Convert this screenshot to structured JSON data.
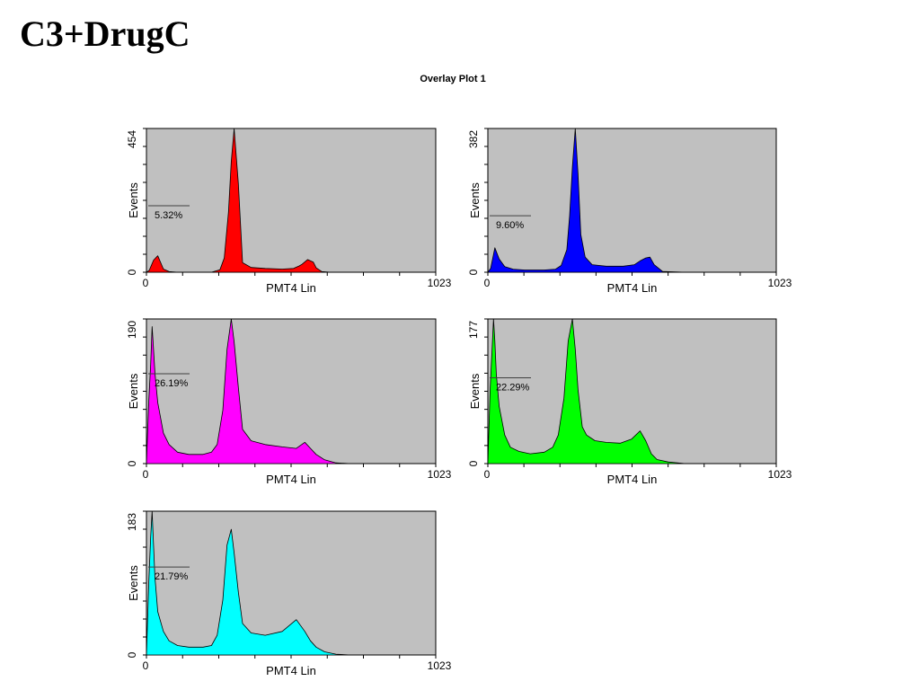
{
  "page": {
    "title": "C3+DrugC",
    "subtitle": "Overlay Plot 1"
  },
  "chart_data": [
    {
      "type": "area",
      "xlabel": "PMT4 Lin",
      "ylabel": "Events",
      "xlim": [
        0,
        1023
      ],
      "ylim": [
        0,
        454
      ],
      "x_ticks": [
        "0",
        "1023"
      ],
      "y_ticks": [
        "0",
        "454"
      ],
      "color": "#ff0000",
      "gate_label": "5.32%",
      "gate_y": 210,
      "series": [
        {
          "x": [
            0,
            10,
            25,
            40,
            60,
            80,
            110,
            150,
            230,
            260,
            275,
            290,
            300,
            310,
            325,
            340,
            370,
            420,
            480,
            520,
            540,
            550,
            570,
            590,
            600,
            620,
            650,
            700,
            750,
            800,
            850,
            900,
            950,
            1023
          ],
          "values": [
            0,
            6,
            38,
            52,
            10,
            2,
            0,
            0,
            0,
            8,
            45,
            190,
            350,
            454,
            280,
            30,
            15,
            12,
            10,
            12,
            20,
            25,
            40,
            32,
            14,
            2,
            0,
            0,
            0,
            0,
            0,
            0,
            0,
            0
          ]
        }
      ]
    },
    {
      "type": "area",
      "xlabel": "PMT4 Lin",
      "ylabel": "Events",
      "xlim": [
        0,
        1023
      ],
      "ylim": [
        0,
        382
      ],
      "x_ticks": [
        "0",
        "1023"
      ],
      "y_ticks": [
        "0",
        "382"
      ],
      "color": "#0000ff",
      "gate_label": "9.60%",
      "gate_y": 150,
      "series": [
        {
          "x": [
            0,
            10,
            25,
            40,
            60,
            90,
            130,
            200,
            240,
            260,
            280,
            290,
            300,
            310,
            320,
            330,
            345,
            370,
            420,
            480,
            520,
            540,
            560,
            575,
            590,
            620,
            700,
            800,
            900,
            1023
          ],
          "values": [
            0,
            10,
            65,
            35,
            15,
            8,
            6,
            6,
            8,
            18,
            60,
            150,
            280,
            382,
            260,
            100,
            40,
            20,
            16,
            16,
            20,
            30,
            38,
            40,
            20,
            2,
            0,
            0,
            0,
            0
          ]
        }
      ]
    },
    {
      "type": "area",
      "xlabel": "PMT4 Lin",
      "ylabel": "Events",
      "xlim": [
        0,
        1023
      ],
      "ylim": [
        0,
        190
      ],
      "x_ticks": [
        "0",
        "1023"
      ],
      "y_ticks": [
        "0",
        "190"
      ],
      "color": "#ff00ff",
      "gate_label": "26.19%",
      "gate_y": 118,
      "series": [
        {
          "x": [
            0,
            8,
            15,
            20,
            25,
            30,
            40,
            60,
            80,
            110,
            150,
            200,
            230,
            250,
            270,
            285,
            300,
            310,
            325,
            340,
            370,
            420,
            480,
            530,
            560,
            580,
            600,
            630,
            670,
            720,
            800,
            900,
            1023
          ],
          "values": [
            0,
            80,
            130,
            180,
            150,
            120,
            80,
            40,
            25,
            15,
            12,
            12,
            15,
            25,
            70,
            150,
            190,
            160,
            100,
            45,
            30,
            25,
            22,
            20,
            28,
            20,
            12,
            5,
            1,
            0,
            0,
            0,
            0
          ]
        }
      ]
    },
    {
      "type": "area",
      "xlabel": "PMT4 Lin",
      "ylabel": "Events",
      "xlim": [
        0,
        1023
      ],
      "ylim": [
        0,
        177
      ],
      "x_ticks": [
        "0",
        "1023"
      ],
      "y_ticks": [
        "0",
        "177"
      ],
      "color": "#00ff00",
      "gate_label": "22.29%",
      "gate_y": 105,
      "series": [
        {
          "x": [
            0,
            8,
            15,
            20,
            25,
            30,
            40,
            60,
            80,
            110,
            150,
            200,
            230,
            250,
            270,
            285,
            300,
            310,
            320,
            335,
            350,
            380,
            420,
            470,
            510,
            540,
            560,
            580,
            600,
            640,
            700,
            800,
            900,
            1023
          ],
          "values": [
            0,
            90,
            140,
            177,
            150,
            110,
            70,
            35,
            20,
            15,
            12,
            14,
            20,
            35,
            80,
            150,
            177,
            140,
            90,
            45,
            35,
            28,
            26,
            25,
            30,
            40,
            28,
            12,
            5,
            2,
            0,
            0,
            0,
            0
          ]
        }
      ]
    },
    {
      "type": "area",
      "xlabel": "PMT4 Lin",
      "ylabel": "Events",
      "xlim": [
        0,
        1023
      ],
      "ylim": [
        0,
        183
      ],
      "x_ticks": [
        "0",
        "1023"
      ],
      "y_ticks": [
        "0",
        "183"
      ],
      "color": "#00ffff",
      "gate_label": "21.79%",
      "gate_y": 112,
      "series": [
        {
          "x": [
            0,
            8,
            15,
            20,
            25,
            30,
            40,
            60,
            80,
            110,
            150,
            200,
            230,
            250,
            270,
            285,
            300,
            310,
            325,
            340,
            370,
            420,
            480,
            530,
            560,
            580,
            600,
            630,
            670,
            720,
            800,
            900,
            1023
          ],
          "values": [
            0,
            90,
            150,
            183,
            140,
            100,
            55,
            30,
            18,
            12,
            10,
            10,
            12,
            25,
            70,
            140,
            160,
            130,
            80,
            40,
            28,
            25,
            30,
            45,
            30,
            18,
            10,
            4,
            1,
            0,
            0,
            0,
            0
          ]
        }
      ]
    }
  ]
}
